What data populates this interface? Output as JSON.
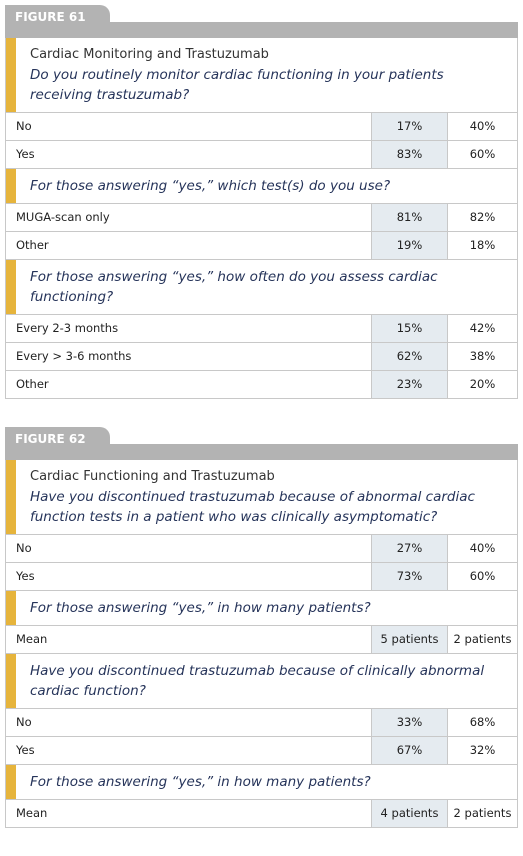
{
  "figures": [
    {
      "label": "FIGURE 61",
      "sections": [
        {
          "title": "Cardiac Monitoring and Trastuzumab",
          "question": "Do you routinely monitor cardiac functioning in your patients receiving trastuzumab?",
          "rows": [
            [
              "No",
              "17%",
              "40%"
            ],
            [
              "Yes",
              "83%",
              "60%"
            ]
          ]
        },
        {
          "question": "For those answering “yes,” which test(s) do you use?",
          "rows": [
            [
              "MUGA-scan only",
              "81%",
              "82%"
            ],
            [
              "Other",
              "19%",
              "18%"
            ]
          ]
        },
        {
          "question": "For those answering “yes,” how often do you assess cardiac functioning?",
          "rows": [
            [
              "Every 2-3 months",
              "15%",
              "42%"
            ],
            [
              "Every > 3-6 months",
              "62%",
              "38%"
            ],
            [
              "Other",
              "23%",
              "20%"
            ]
          ]
        }
      ]
    },
    {
      "label": "FIGURE 62",
      "sections": [
        {
          "title": "Cardiac Functioning and Trastuzumab",
          "question": "Have you discontinued trastuzumab because of abnormal cardiac function tests in a patient who was clinically asymptomatic?",
          "rows": [
            [
              "No",
              "27%",
              "40%"
            ],
            [
              "Yes",
              "73%",
              "60%"
            ]
          ]
        },
        {
          "question": "For those answering “yes,” in how many patients?",
          "rows": [
            [
              "Mean",
              "5 patients",
              "2 patients"
            ]
          ]
        },
        {
          "question": "Have you discontinued trastuzumab because of clinically abnormal cardiac function?",
          "rows": [
            [
              "No",
              "33%",
              "68%"
            ],
            [
              "Yes",
              "67%",
              "32%"
            ]
          ]
        },
        {
          "question": "For those answering “yes,” in how many patients?",
          "rows": [
            [
              "Mean",
              "4 patients",
              "2 patients"
            ]
          ]
        }
      ]
    }
  ]
}
